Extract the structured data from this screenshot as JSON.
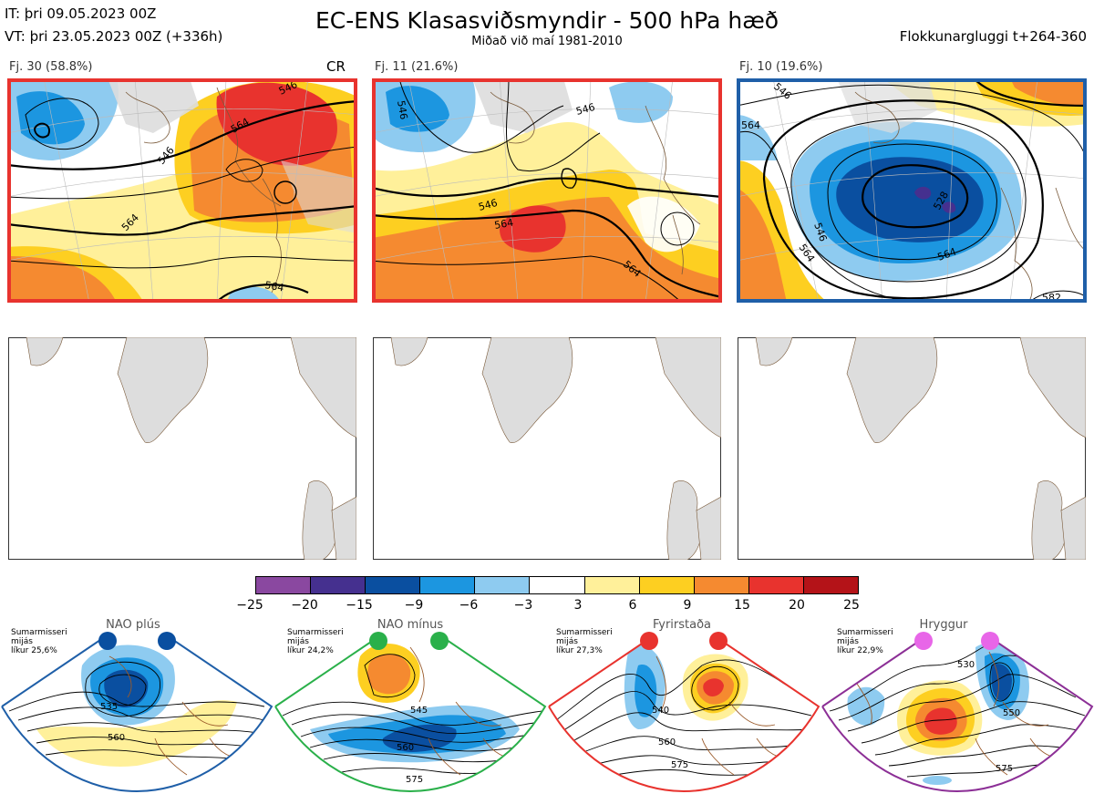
{
  "header": {
    "it": "IT: þri 09.05.2023 00Z",
    "vt": "VT: þri 23.05.2023 00Z  (+336h)",
    "title": "EC-ENS Klasasviðsmyndir - 500 hPa hæð",
    "subtitle": "Miðað við maí 1981-2010",
    "window": "Flokkunargluggi t+264-360"
  },
  "panels": [
    {
      "label": "Fj. 30 (58.8%)",
      "tag": "CR",
      "border": "#e8332e",
      "contours": [
        "546",
        "564",
        "564",
        "546",
        "564"
      ]
    },
    {
      "label": "Fj. 11 (21.6%)",
      "tag": "",
      "border": "#e8332e",
      "contours": [
        "546",
        "546",
        "564",
        "564"
      ]
    },
    {
      "label": "Fj. 10 (19.6%)",
      "tag": "",
      "border": "#1f5fa8",
      "contours": [
        "546",
        "564",
        "546",
        "564",
        "528",
        "564",
        "582"
      ]
    }
  ],
  "colorbar": {
    "ticks": [
      "−25",
      "−20",
      "−15",
      "−9",
      "−6",
      "−3",
      "3",
      "6",
      "9",
      "15",
      "20",
      "25"
    ],
    "colors": [
      "#8a48a0",
      "#45308f",
      "#0a4fa0",
      "#1c96e0",
      "#8ecbf0",
      "#ffffff",
      "#fff09a",
      "#fdcf21",
      "#f58a30",
      "#e8332e",
      "#b41318"
    ]
  },
  "regimes": [
    {
      "name": "NAO plús",
      "info": [
        "Sumarmisseri",
        "mijás",
        "líkur 25,6%"
      ],
      "dot_color": "#0a4fa0",
      "border": "#1f5fa8",
      "contours": [
        "535",
        "560"
      ]
    },
    {
      "name": "NAO mínus",
      "info": [
        "Sumarmisseri",
        "mijás",
        "líkur 24,2%"
      ],
      "dot_color": "#2ab04a",
      "border": "#2ab04a",
      "contours": [
        "545",
        "560",
        "575"
      ]
    },
    {
      "name": "Fyrirstaða",
      "info": [
        "Sumarmisseri",
        "mijás",
        "líkur 27,3%"
      ],
      "dot_color": "#e8332e",
      "border": "#e8332e",
      "contours": [
        "540",
        "560",
        "575"
      ]
    },
    {
      "name": "Hryggur",
      "info": [
        "Sumarmisseri",
        "mijás",
        "líkur 22,9%"
      ],
      "dot_color": "#e866e8",
      "border": "#8c2f96",
      "contours": [
        "530",
        "550",
        "575"
      ]
    }
  ]
}
